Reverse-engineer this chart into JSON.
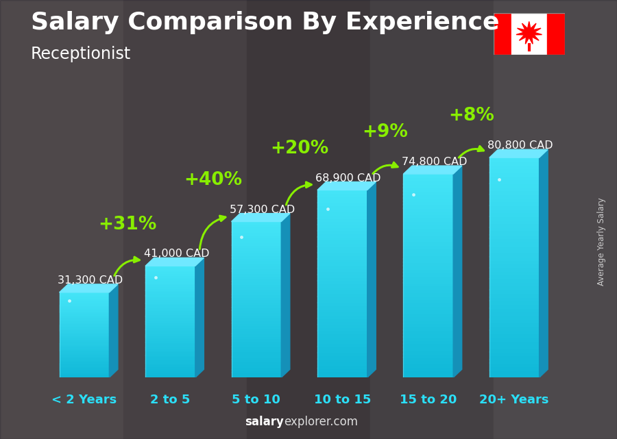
{
  "title": "Salary Comparison By Experience",
  "subtitle": "Receptionist",
  "categories": [
    "< 2 Years",
    "2 to 5",
    "5 to 10",
    "10 to 15",
    "15 to 20",
    "20+ Years"
  ],
  "values": [
    31300,
    41000,
    57300,
    68900,
    74800,
    80800
  ],
  "labels": [
    "31,300 CAD",
    "41,000 CAD",
    "57,300 CAD",
    "68,900 CAD",
    "74,800 CAD",
    "80,800 CAD"
  ],
  "pct_changes": [
    "+31%",
    "+40%",
    "+20%",
    "+9%",
    "+8%"
  ],
  "bar_front_top": "#3dd8f0",
  "bar_front_bot": "#1ab8e0",
  "bar_top_face": "#70e8ff",
  "bar_side_face": "#0a80a8",
  "bg_color": "#6b5a4e",
  "title_color": "#ffffff",
  "subtitle_color": "#ffffff",
  "label_color": "#ffffff",
  "pct_color": "#88ee00",
  "xlabel_color": "#2be0f8",
  "ylabel_text": "Average Yearly Salary",
  "footer_bold": "salary",
  "footer_normal": "explorer.com",
  "footer_color_bold": "#ffffff",
  "footer_color_normal": "#cccccc",
  "ylim": [
    0,
    100000
  ],
  "title_fontsize": 26,
  "subtitle_fontsize": 17,
  "label_fontsize": 11.5,
  "pct_fontsize": 19,
  "xticklabel_fontsize": 13,
  "figsize": [
    9.0,
    6.41
  ],
  "dpi": 100
}
